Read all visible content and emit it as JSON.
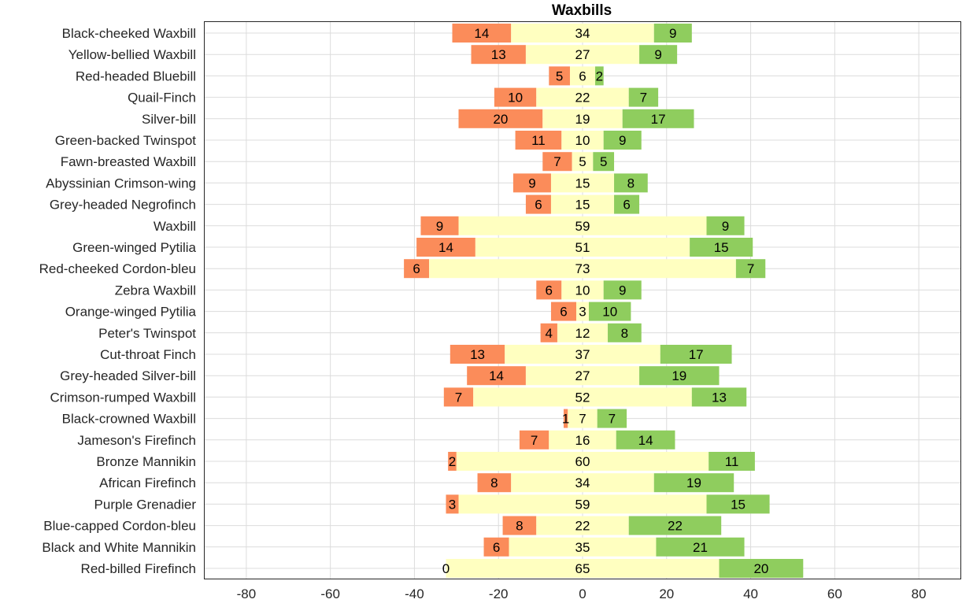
{
  "chart_data": {
    "type": "bar",
    "orientation": "horizontal",
    "stacked": "diverging",
    "title": "Waxbills",
    "xlim": [
      -90,
      90
    ],
    "xticks": [
      -80,
      -60,
      -40,
      -20,
      0,
      20,
      40,
      60,
      80
    ],
    "xtick_labels": [
      "-80",
      "-60",
      "-40",
      "-20",
      "0",
      "20",
      "40",
      "60",
      "80"
    ],
    "grid": true,
    "categories": [
      "Black-cheeked Waxbill",
      "Yellow-bellied Waxbill",
      "Red-headed Bluebill",
      "Quail-Finch",
      "Silver-bill",
      "Green-backed Twinspot",
      "Fawn-breasted Waxbill",
      "Abyssinian Crimson-wing",
      "Grey-headed Negrofinch",
      "Waxbill",
      "Green-winged Pytilia",
      "Red-cheeked Cordon-bleu",
      "Zebra Waxbill",
      "Orange-winged Pytilia",
      "Peter's Twinspot",
      "Cut-throat Finch",
      "Grey-headed Silver-bill",
      "Crimson-rumped Waxbill",
      "Black-crowned Waxbill",
      "Jameson's Firefinch",
      "Bronze Mannikin",
      "African Firefinch",
      "Purple Grenadier",
      "Blue-capped Cordon-bleu",
      "Black and White Mannikin",
      "Red-billed Firefinch"
    ],
    "series": [
      {
        "color": "#fb8c5a",
        "position": "left",
        "values": [
          14,
          13,
          5,
          10,
          20,
          11,
          7,
          9,
          6,
          9,
          14,
          6,
          6,
          6,
          4,
          13,
          14,
          7,
          1,
          7,
          2,
          8,
          3,
          8,
          6,
          0
        ]
      },
      {
        "color": "#ffffc0",
        "position": "center",
        "values": [
          34,
          27,
          6,
          22,
          19,
          10,
          5,
          15,
          15,
          59,
          51,
          73,
          10,
          3,
          12,
          37,
          27,
          52,
          7,
          16,
          60,
          34,
          59,
          22,
          35,
          65
        ]
      },
      {
        "color": "#8fcd5e",
        "position": "right",
        "values": [
          9,
          9,
          2,
          7,
          17,
          9,
          5,
          8,
          6,
          9,
          15,
          7,
          9,
          10,
          8,
          17,
          19,
          13,
          7,
          14,
          11,
          19,
          15,
          22,
          21,
          20
        ]
      }
    ]
  }
}
